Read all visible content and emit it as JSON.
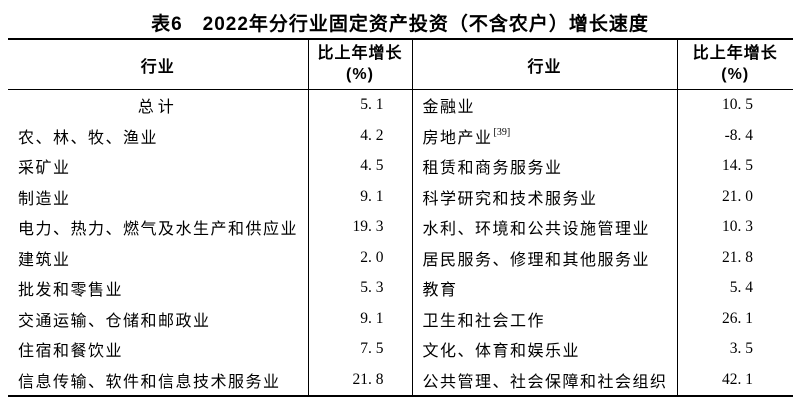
{
  "title": "表6　2022年分行业固定资产投资（不含农户）增长速度",
  "table": {
    "header": {
      "industry": "行业",
      "growth_line1": "比上年增长",
      "growth_line2": "(%)"
    },
    "rows": [
      {
        "l_name": "总计",
        "l_val": "5.1",
        "r_name": "金融业",
        "r_val": "10.5"
      },
      {
        "l_name": "农、林、牧、渔业",
        "l_val": "4.2",
        "r_name": "房地产业",
        "r_sup": "[39]",
        "r_val": "-8.4"
      },
      {
        "l_name": "采矿业",
        "l_val": "4.5",
        "r_name": "租赁和商务服务业",
        "r_val": "14.5"
      },
      {
        "l_name": "制造业",
        "l_val": "9.1",
        "r_name": "科学研究和技术服务业",
        "r_val": "21.0"
      },
      {
        "l_name": "电力、热力、燃气及水生产和供应业",
        "l_val": "19.3",
        "r_name": "水利、环境和公共设施管理业",
        "r_val": "10.3"
      },
      {
        "l_name": "建筑业",
        "l_val": "2.0",
        "r_name": "居民服务、修理和其他服务业",
        "r_val": "21.8"
      },
      {
        "l_name": "批发和零售业",
        "l_val": "5.3",
        "r_name": "教育",
        "r_val": "5.4"
      },
      {
        "l_name": "交通运输、仓储和邮政业",
        "l_val": "9.1",
        "r_name": "卫生和社会工作",
        "r_val": "26.1"
      },
      {
        "l_name": "住宿和餐饮业",
        "l_val": "7.5",
        "r_name": "文化、体育和娱乐业",
        "r_val": "3.5"
      },
      {
        "l_name": "信息传输、软件和信息技术服务业",
        "l_val": "21.8",
        "r_name": "公共管理、社会保障和社会组织",
        "r_val": "42.1"
      }
    ]
  }
}
